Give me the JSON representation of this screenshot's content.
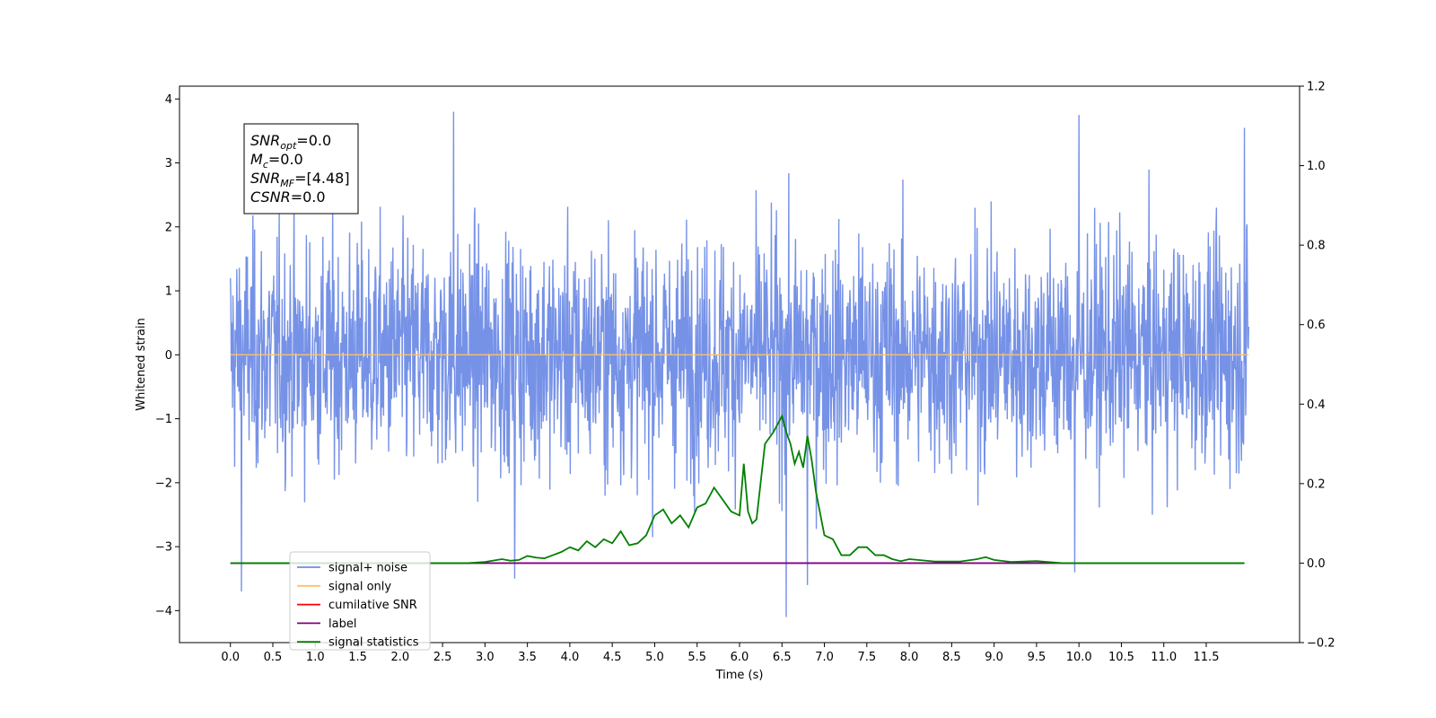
{
  "chart_data": {
    "type": "line",
    "xlabel": "Time (s)",
    "ylabel": "Whitened strain",
    "xlim": [
      -0.6,
      12.6
    ],
    "ylim": [
      -4.5,
      4.2
    ],
    "y2lim": [
      -0.2,
      1.2
    ],
    "x_ticks": [
      "0.0",
      "0.5",
      "1.0",
      "1.5",
      "2.0",
      "2.5",
      "3.0",
      "3.5",
      "4.0",
      "4.5",
      "5.0",
      "5.5",
      "6.0",
      "6.5",
      "7.0",
      "7.5",
      "8.0",
      "8.5",
      "9.0",
      "9.5",
      "10.0",
      "10.5",
      "11.0",
      "11.5"
    ],
    "y_ticks": [
      "4",
      "3",
      "2",
      "1",
      "0",
      "−1",
      "−2",
      "−3",
      "−4"
    ],
    "y2_ticks": [
      "1.2",
      "1.0",
      "0.8",
      "0.6",
      "0.4",
      "0.2",
      "0.0",
      "−0.2"
    ],
    "info_box": [
      {
        "main": "SNR",
        "sub": "opt",
        "rest": "=0.0"
      },
      {
        "main": "M",
        "sub": "c",
        "rest": "=0.0"
      },
      {
        "main": "SNR",
        "sub": "MF",
        "rest": "=[4.48]"
      },
      {
        "main": "CSNR",
        "sub": "",
        "rest": "=0.0"
      }
    ],
    "legend_position": "lower-left",
    "series": [
      {
        "name": "signal+ noise",
        "color": "#6f8ce6",
        "axis": "left",
        "kind": "noise",
        "x_range": [
          0,
          12
        ],
        "approx_std": 0.9,
        "notable_peaks": [
          {
            "x": 2.63,
            "y": 3.8
          },
          {
            "x": 10.0,
            "y": 3.75
          },
          {
            "x": 11.95,
            "y": 3.55
          },
          {
            "x": 0.13,
            "y": -3.7
          },
          {
            "x": 6.55,
            "y": -4.1
          },
          {
            "x": 6.8,
            "y": -3.6
          },
          {
            "x": 9.95,
            "y": -3.4
          },
          {
            "x": 3.35,
            "y": -3.5
          }
        ]
      },
      {
        "name": "signal only",
        "color": "#ffbf66",
        "axis": "left",
        "x": [
          0,
          12
        ],
        "y": [
          0,
          0
        ]
      },
      {
        "name": "cumilative SNR",
        "color": "#ff0000",
        "axis": "right",
        "x": [],
        "y": []
      },
      {
        "name": "label",
        "color": "#800080",
        "axis": "right",
        "x": [
          0,
          11.95
        ],
        "y": [
          0,
          0
        ]
      },
      {
        "name": "signal statistics",
        "color": "#008000",
        "axis": "right",
        "x": [
          0.0,
          2.8,
          3.0,
          3.2,
          3.3,
          3.4,
          3.5,
          3.6,
          3.7,
          3.8,
          3.9,
          4.0,
          4.1,
          4.2,
          4.3,
          4.4,
          4.5,
          4.6,
          4.7,
          4.8,
          4.9,
          5.0,
          5.1,
          5.2,
          5.3,
          5.4,
          5.5,
          5.6,
          5.7,
          5.8,
          5.9,
          6.0,
          6.05,
          6.1,
          6.15,
          6.2,
          6.3,
          6.4,
          6.5,
          6.55,
          6.6,
          6.65,
          6.7,
          6.75,
          6.8,
          6.85,
          6.9,
          7.0,
          7.1,
          7.2,
          7.3,
          7.4,
          7.5,
          7.6,
          7.7,
          7.8,
          7.9,
          8.0,
          8.3,
          8.6,
          8.8,
          8.9,
          9.0,
          9.2,
          9.5,
          9.8,
          11.95
        ],
        "y": [
          0.0,
          0.0,
          0.003,
          0.01,
          0.006,
          0.008,
          0.018,
          0.014,
          0.012,
          0.02,
          0.028,
          0.04,
          0.032,
          0.055,
          0.04,
          0.06,
          0.05,
          0.08,
          0.045,
          0.05,
          0.07,
          0.12,
          0.135,
          0.1,
          0.12,
          0.09,
          0.14,
          0.15,
          0.19,
          0.16,
          0.13,
          0.12,
          0.25,
          0.13,
          0.1,
          0.11,
          0.3,
          0.33,
          0.37,
          0.33,
          0.3,
          0.25,
          0.28,
          0.24,
          0.32,
          0.26,
          0.18,
          0.07,
          0.06,
          0.02,
          0.02,
          0.04,
          0.04,
          0.02,
          0.02,
          0.01,
          0.005,
          0.01,
          0.004,
          0.004,
          0.01,
          0.015,
          0.008,
          0.003,
          0.005,
          0.0,
          0.0
        ]
      }
    ]
  }
}
